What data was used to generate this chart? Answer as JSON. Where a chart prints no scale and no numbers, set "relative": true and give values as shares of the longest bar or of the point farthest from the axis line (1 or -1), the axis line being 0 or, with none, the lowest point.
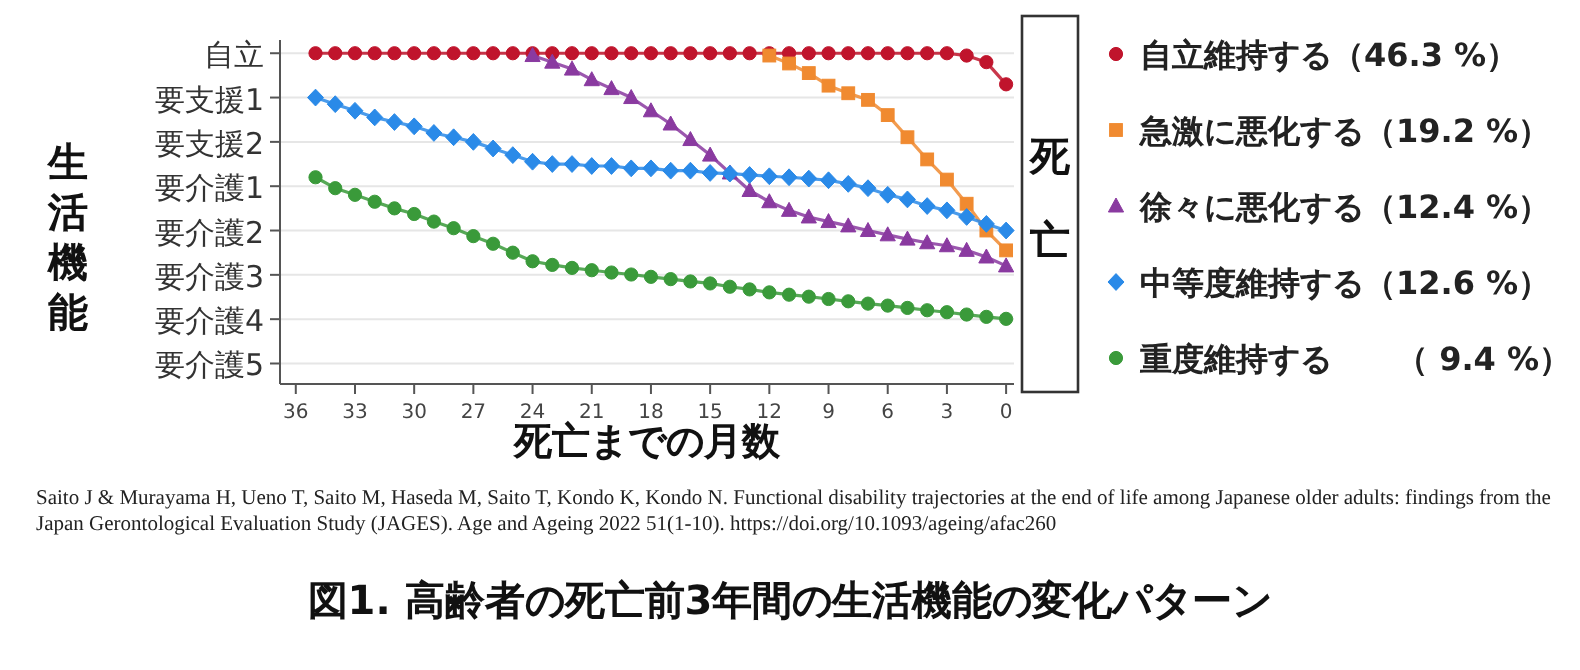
{
  "chart_data": {
    "type": "line",
    "title": "図1. 高齢者の死亡前3年間の生活機能の変化パターン",
    "xlabel": "死亡までの月数",
    "ylabel": "生活機能",
    "xlim": [
      36.8,
      -0.4
    ],
    "xticks": [
      36,
      33,
      30,
      27,
      24,
      21,
      18,
      15,
      12,
      9,
      6,
      3,
      0
    ],
    "relative": true,
    "y_categories": [
      "自立",
      "要支援1",
      "要支援2",
      "要介護1",
      "要介護2",
      "要介護3",
      "要介護4",
      "要介護5"
    ],
    "grid": "y",
    "legend": "right",
    "series": [
      {
        "name": "自立維持する（46.3 %）",
        "color": "#c0142c",
        "marker": "circle",
        "x": [
          35,
          34,
          33,
          32,
          31,
          30,
          29,
          28,
          27,
          26,
          25,
          24,
          23,
          22,
          21,
          20,
          19,
          18,
          17,
          16,
          15,
          14,
          13,
          12,
          11,
          10,
          9,
          8,
          7,
          6,
          5,
          4,
          3,
          2,
          1,
          0
        ],
        "values": [
          1,
          1,
          1,
          1,
          1,
          1,
          1,
          1,
          1,
          1,
          1,
          1,
          1,
          1,
          1,
          1,
          1,
          1,
          1,
          1,
          1,
          1,
          1,
          1,
          1,
          1,
          1,
          1,
          1,
          1,
          1,
          1,
          1,
          0.993,
          0.973,
          0.906
        ]
      },
      {
        "name": "急激に悪化する（19.2 %）",
        "color": "#f08a30",
        "marker": "square",
        "x": [
          12,
          11,
          10,
          9,
          8,
          7,
          6,
          5,
          4,
          3,
          2,
          1,
          0
        ],
        "values": [
          0.993,
          0.969,
          0.94,
          0.902,
          0.879,
          0.859,
          0.813,
          0.746,
          0.679,
          0.618,
          0.545,
          0.464,
          0.404
        ]
      },
      {
        "name": "徐々に悪化する（12.4 %）",
        "color": "#8a3aa0",
        "marker": "triangle",
        "x": [
          24,
          23,
          22,
          21,
          20,
          19,
          18,
          17,
          16,
          15,
          14,
          13,
          12,
          11,
          10,
          9,
          8,
          7,
          6,
          5,
          4,
          3,
          2,
          1,
          0
        ],
        "values": [
          0.993,
          0.973,
          0.952,
          0.92,
          0.893,
          0.866,
          0.826,
          0.786,
          0.739,
          0.692,
          0.638,
          0.585,
          0.551,
          0.525,
          0.505,
          0.491,
          0.478,
          0.464,
          0.451,
          0.438,
          0.427,
          0.418,
          0.404,
          0.384,
          0.357
        ]
      },
      {
        "name": "中等度維持する（12.6 %）",
        "color": "#2a8ae8",
        "marker": "diamond",
        "x": [
          35,
          34,
          33,
          32,
          31,
          30,
          29,
          28,
          27,
          26,
          25,
          24,
          23,
          22,
          21,
          20,
          19,
          18,
          17,
          16,
          15,
          14,
          13,
          12,
          11,
          10,
          9,
          8,
          7,
          6,
          5,
          4,
          3,
          2,
          1,
          0
        ],
        "values": [
          0.866,
          0.846,
          0.826,
          0.806,
          0.792,
          0.779,
          0.759,
          0.746,
          0.732,
          0.712,
          0.692,
          0.672,
          0.665,
          0.665,
          0.659,
          0.659,
          0.652,
          0.652,
          0.645,
          0.645,
          0.638,
          0.636,
          0.632,
          0.628,
          0.625,
          0.621,
          0.616,
          0.605,
          0.592,
          0.572,
          0.558,
          0.538,
          0.525,
          0.505,
          0.484,
          0.464
        ]
      },
      {
        "name": "重度維持する　　（ 9.4 %）",
        "color": "#3a9a3a",
        "marker": "circle",
        "x": [
          35,
          34,
          33,
          32,
          31,
          30,
          29,
          28,
          27,
          26,
          25,
          24,
          23,
          22,
          21,
          20,
          19,
          18,
          17,
          16,
          15,
          14,
          13,
          12,
          11,
          10,
          9,
          8,
          7,
          6,
          5,
          4,
          3,
          2,
          1,
          0
        ],
        "values": [
          0.625,
          0.592,
          0.572,
          0.551,
          0.531,
          0.514,
          0.491,
          0.471,
          0.447,
          0.424,
          0.397,
          0.371,
          0.36,
          0.351,
          0.344,
          0.337,
          0.331,
          0.324,
          0.317,
          0.31,
          0.304,
          0.294,
          0.286,
          0.277,
          0.27,
          0.264,
          0.257,
          0.25,
          0.243,
          0.237,
          0.23,
          0.223,
          0.217,
          0.21,
          0.203,
          0.197
        ]
      }
    ],
    "annotations": [
      "死亡",
      "Saito J & Murayama H, Ueno T, Saito M, Haseda M, Saito T, Kondo K, Kondo N. Functional disability trajectories at the end of life among Japanese older adults: findings from the Japan Gerontological Evaluation Study (JAGES). Age and Ageing 2022 51(1-10). https://doi.org/10.1093/ageing/afac260"
    ]
  }
}
